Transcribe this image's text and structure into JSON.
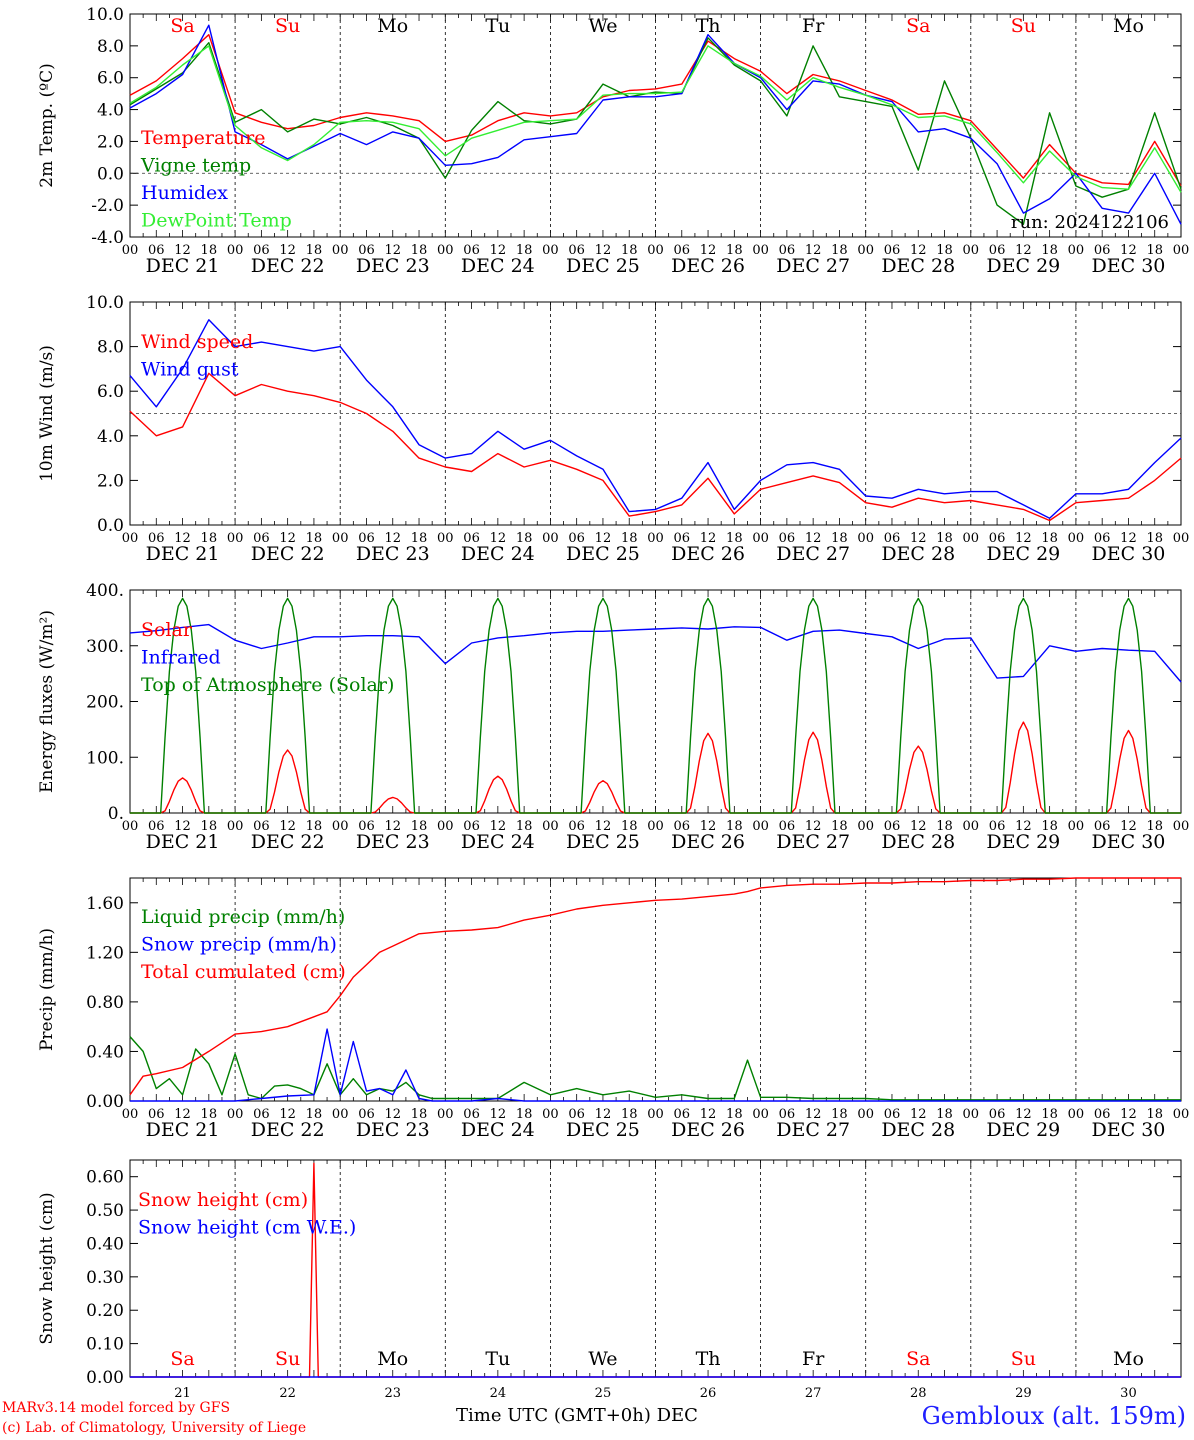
{
  "footer": {
    "model_line": "MARv3.14 model forced by GFS",
    "credit_line": "(c) Lab. of Climatology, University of Liege",
    "axis_title": "Time UTC (GMT+0h) DEC",
    "station": "Gembloux (alt. 159m)"
  },
  "time_axis": {
    "hour_ticks": [
      "00",
      "06",
      "12",
      "18"
    ],
    "final_tick": "00",
    "day_labels": [
      "DEC 21",
      "DEC 22",
      "DEC 23",
      "DEC 24",
      "DEC 25",
      "DEC 26",
      "DEC 27",
      "DEC 28",
      "DEC 29",
      "DEC 30"
    ],
    "bottom_day_numbers": [
      "21",
      "22",
      "23",
      "24",
      "25",
      "26",
      "27",
      "28",
      "29",
      "30"
    ],
    "weekdays": [
      "Sa",
      "Su",
      "Mo",
      "Tu",
      "We",
      "Th",
      "Fr",
      "Sa",
      "Su",
      "Mo"
    ],
    "weekend_color": "#ff0000",
    "weekday_color": "#000000"
  },
  "chart_data": [
    {
      "type": "line",
      "ylabel": "2m Temp. (ºC)",
      "ylim": [
        -4,
        10
      ],
      "yticks": [
        "-4.0",
        "-2.0",
        "0.0",
        "2.0",
        "4.0",
        "6.0",
        "8.0",
        "10.0"
      ],
      "ytick_values": [
        -4,
        -2,
        0,
        2,
        4,
        6,
        8,
        10
      ],
      "dashed_hline": 0,
      "annotation": "run: 2024122106",
      "x_hours": [
        0,
        6,
        12,
        18,
        24,
        30,
        36,
        42,
        48,
        54,
        60,
        66,
        72,
        78,
        84,
        90,
        96,
        102,
        108,
        114,
        120,
        126,
        132,
        138,
        144,
        150,
        156,
        162,
        168,
        174,
        180,
        186,
        192,
        198,
        204,
        210,
        216,
        222,
        228,
        234,
        240
      ],
      "series": [
        {
          "name": "Temperature",
          "color": "#ff0000",
          "values": [
            4.9,
            5.8,
            7.2,
            8.7,
            3.8,
            3.2,
            2.8,
            3.0,
            3.5,
            3.8,
            3.6,
            3.3,
            2.0,
            2.4,
            3.3,
            3.8,
            3.6,
            3.8,
            4.8,
            5.2,
            5.3,
            5.6,
            8.3,
            7.2,
            6.4,
            5.0,
            6.2,
            5.8,
            5.2,
            4.6,
            3.7,
            3.8,
            3.3,
            1.5,
            -0.3,
            1.8,
            0.0,
            -0.6,
            -0.7,
            2.0,
            -0.8
          ]
        },
        {
          "name": "Vigne temp",
          "color": "#008000",
          "values": [
            4.3,
            5.3,
            6.3,
            8.2,
            3.2,
            4.0,
            2.6,
            3.4,
            3.1,
            3.5,
            3.0,
            2.2,
            -0.3,
            2.7,
            4.5,
            3.3,
            3.1,
            3.4,
            5.6,
            4.8,
            5.1,
            5.0,
            8.5,
            6.8,
            5.8,
            3.6,
            8.0,
            4.8,
            4.5,
            4.2,
            0.2,
            5.8,
            2.2,
            -2.0,
            -3.2,
            3.8,
            -0.8,
            -1.5,
            -1.0,
            3.8,
            -1.0
          ]
        },
        {
          "name": "Humidex",
          "color": "#0000ff",
          "values": [
            4.1,
            5.0,
            6.2,
            9.3,
            2.6,
            1.8,
            0.9,
            1.7,
            2.5,
            1.8,
            2.6,
            2.2,
            0.5,
            0.6,
            1.0,
            2.1,
            2.3,
            2.5,
            4.6,
            4.8,
            4.8,
            5.0,
            8.7,
            6.9,
            6.0,
            4.0,
            5.8,
            5.6,
            4.9,
            4.5,
            2.6,
            2.8,
            2.2,
            0.6,
            -2.5,
            -1.6,
            0.0,
            -2.2,
            -2.5,
            0.0,
            -3.2
          ]
        },
        {
          "name": "DewPoint Temp",
          "color": "#33ee33",
          "values": [
            4.4,
            5.4,
            6.8,
            8.0,
            3.0,
            1.6,
            0.8,
            1.8,
            3.2,
            3.3,
            3.2,
            2.8,
            1.1,
            2.2,
            2.7,
            3.2,
            3.3,
            3.4,
            4.9,
            5.0,
            5.0,
            5.1,
            8.0,
            6.9,
            6.1,
            4.6,
            6.0,
            5.4,
            4.9,
            4.3,
            3.5,
            3.6,
            3.1,
            1.3,
            -0.6,
            1.4,
            -0.2,
            -0.9,
            -1.0,
            1.6,
            -1.2
          ]
        }
      ]
    },
    {
      "type": "line",
      "ylabel": "10m Wind (m/s)",
      "ylim": [
        0,
        10
      ],
      "yticks": [
        "0.0",
        "2.0",
        "4.0",
        "6.0",
        "8.0",
        "10.0"
      ],
      "ytick_values": [
        0,
        2,
        4,
        6,
        8,
        10
      ],
      "dashed_hline": 5,
      "x_hours": [
        0,
        6,
        12,
        18,
        24,
        30,
        36,
        42,
        48,
        54,
        60,
        66,
        72,
        78,
        84,
        90,
        96,
        102,
        108,
        114,
        120,
        126,
        132,
        138,
        144,
        150,
        156,
        162,
        168,
        174,
        180,
        186,
        192,
        198,
        204,
        210,
        216,
        222,
        228,
        234,
        240
      ],
      "series": [
        {
          "name": "Wind speed",
          "color": "#ff0000",
          "values": [
            5.1,
            4.0,
            4.4,
            6.8,
            5.8,
            6.3,
            6.0,
            5.8,
            5.5,
            5.0,
            4.2,
            3.0,
            2.6,
            2.4,
            3.2,
            2.6,
            2.9,
            2.5,
            2.0,
            0.4,
            0.6,
            0.9,
            2.1,
            0.5,
            1.6,
            1.9,
            2.2,
            1.9,
            1.0,
            0.8,
            1.2,
            1.0,
            1.1,
            0.9,
            0.7,
            0.2,
            1.0,
            1.1,
            1.2,
            2.0,
            3.0
          ]
        },
        {
          "name": "Wind gust",
          "color": "#0000ff",
          "values": [
            6.7,
            5.3,
            7.0,
            9.2,
            8.0,
            8.2,
            8.0,
            7.8,
            8.0,
            6.5,
            5.3,
            3.6,
            3.0,
            3.2,
            4.2,
            3.4,
            3.8,
            3.1,
            2.5,
            0.6,
            0.7,
            1.2,
            2.8,
            0.7,
            2.0,
            2.7,
            2.8,
            2.5,
            1.3,
            1.2,
            1.6,
            1.4,
            1.5,
            1.5,
            0.9,
            0.3,
            1.4,
            1.4,
            1.6,
            2.8,
            3.9
          ]
        }
      ]
    },
    {
      "type": "line",
      "ylabel": "Energy fluxes (W/m²)",
      "ylim": [
        0,
        400
      ],
      "yticks": [
        "0.",
        "100.",
        "200.",
        "300.",
        "400."
      ],
      "ytick_values": [
        0,
        100,
        200,
        300,
        400
      ],
      "solar_peaks": [
        63,
        113,
        28,
        66,
        58,
        143,
        145,
        120,
        163,
        148
      ],
      "toa_peak": 385,
      "series": [
        {
          "name": "Solar",
          "color": "#ff0000"
        },
        {
          "name": "Infrared",
          "color": "#0000ff",
          "x_hours": [
            0,
            6,
            12,
            18,
            24,
            30,
            36,
            42,
            48,
            54,
            60,
            66,
            72,
            78,
            84,
            90,
            96,
            102,
            108,
            114,
            120,
            126,
            132,
            138,
            144,
            150,
            156,
            162,
            168,
            174,
            180,
            186,
            192,
            198,
            204,
            210,
            216,
            222,
            228,
            234,
            240
          ],
          "values": [
            323,
            327,
            333,
            338,
            310,
            295,
            305,
            316,
            316,
            318,
            318,
            316,
            268,
            305,
            314,
            318,
            323,
            326,
            326,
            328,
            330,
            332,
            330,
            334,
            333,
            310,
            326,
            328,
            322,
            316,
            295,
            312,
            314,
            242,
            245,
            300,
            290,
            295,
            292,
            290,
            235
          ]
        },
        {
          "name": "Top of Atmosphere (Solar)",
          "color": "#008000"
        }
      ]
    },
    {
      "type": "line",
      "ylabel": "Precip (mm/h)",
      "ylim": [
        0,
        1.8
      ],
      "yticks": [
        "0.00",
        "0.40",
        "0.80",
        "1.20",
        "1.60"
      ],
      "ytick_values": [
        0,
        0.4,
        0.8,
        1.2,
        1.6
      ],
      "series": [
        {
          "name": "Liquid precip (mm/h)",
          "color": "#008000",
          "x_hours": [
            0,
            3,
            6,
            9,
            12,
            15,
            18,
            21,
            24,
            27,
            30,
            33,
            36,
            39,
            42,
            45,
            48,
            51,
            54,
            57,
            60,
            63,
            66,
            69,
            72,
            78,
            84,
            90,
            96,
            102,
            108,
            114,
            120,
            126,
            132,
            138,
            141,
            144,
            150,
            156,
            162,
            168,
            174,
            180,
            186,
            192,
            198,
            204,
            210,
            216,
            222,
            228,
            234,
            240
          ],
          "values": [
            0.52,
            0.4,
            0.1,
            0.18,
            0.05,
            0.42,
            0.3,
            0.05,
            0.38,
            0.05,
            0.02,
            0.12,
            0.13,
            0.1,
            0.05,
            0.3,
            0.05,
            0.18,
            0.05,
            0.1,
            0.08,
            0.15,
            0.05,
            0.02,
            0.02,
            0.02,
            0.02,
            0.15,
            0.05,
            0.1,
            0.05,
            0.08,
            0.03,
            0.05,
            0.02,
            0.02,
            0.33,
            0.03,
            0.03,
            0.02,
            0.02,
            0.02,
            0.01,
            0.01,
            0.01,
            0.01,
            0.01,
            0.01,
            0.01,
            0.01,
            0.01,
            0.01,
            0.01,
            0.01
          ]
        },
        {
          "name": "Snow precip (mm/h)",
          "color": "#0000ff",
          "x_hours": [
            0,
            6,
            12,
            18,
            24,
            30,
            36,
            42,
            45,
            48,
            51,
            54,
            57,
            60,
            63,
            66,
            69,
            72,
            78,
            84,
            90,
            96,
            102,
            108,
            114,
            120,
            126,
            132,
            138,
            144,
            150,
            156,
            162,
            168,
            174,
            180,
            186,
            192,
            198,
            204,
            210,
            216,
            222,
            228,
            234,
            240
          ],
          "values": [
            0.0,
            0.0,
            0.0,
            0.0,
            0.0,
            0.02,
            0.04,
            0.05,
            0.58,
            0.05,
            0.48,
            0.08,
            0.1,
            0.05,
            0.25,
            0.02,
            0.0,
            0.0,
            0.0,
            0.02,
            0.0,
            0.0,
            0.0,
            0.0,
            0.0,
            0.0,
            0.0,
            0.0,
            0.0,
            0.0,
            0.0,
            0.0,
            0.0,
            0.0,
            0.0,
            0.0,
            0.0,
            0.0,
            0.0,
            0.0,
            0.0,
            0.0,
            0.0,
            0.0,
            0.0,
            0.0
          ]
        },
        {
          "name": "Total cumulated (cm)",
          "color": "#ff0000",
          "x_hours": [
            0,
            3,
            6,
            12,
            18,
            24,
            30,
            36,
            42,
            45,
            48,
            51,
            54,
            57,
            60,
            66,
            72,
            78,
            84,
            90,
            96,
            102,
            108,
            114,
            120,
            126,
            132,
            138,
            141,
            144,
            150,
            156,
            162,
            168,
            174,
            180,
            186,
            192,
            198,
            204,
            210,
            216,
            222,
            228,
            234,
            240
          ],
          "values": [
            0.05,
            0.2,
            0.22,
            0.27,
            0.4,
            0.54,
            0.56,
            0.6,
            0.68,
            0.72,
            0.85,
            1.0,
            1.1,
            1.2,
            1.25,
            1.35,
            1.37,
            1.38,
            1.4,
            1.46,
            1.5,
            1.55,
            1.58,
            1.6,
            1.62,
            1.63,
            1.65,
            1.67,
            1.69,
            1.72,
            1.74,
            1.75,
            1.75,
            1.76,
            1.76,
            1.77,
            1.77,
            1.78,
            1.78,
            1.79,
            1.79,
            1.8,
            1.8,
            1.8,
            1.8,
            1.8
          ]
        }
      ]
    },
    {
      "type": "line",
      "ylabel": "Snow height (cm)",
      "ylim": [
        0,
        0.65
      ],
      "yticks": [
        "0.00",
        "0.10",
        "0.20",
        "0.30",
        "0.40",
        "0.50",
        "0.60"
      ],
      "ytick_values": [
        0,
        0.1,
        0.2,
        0.3,
        0.4,
        0.5,
        0.6
      ],
      "series": [
        {
          "name": "Snow height (cm)",
          "color": "#ff0000",
          "x_hours": [
            0,
            40,
            41,
            42,
            43,
            240
          ],
          "values": [
            0,
            0,
            0,
            0.64,
            0,
            0
          ]
        },
        {
          "name": "Snow height (cm W.E.)",
          "color": "#0000ff"
        }
      ]
    }
  ]
}
